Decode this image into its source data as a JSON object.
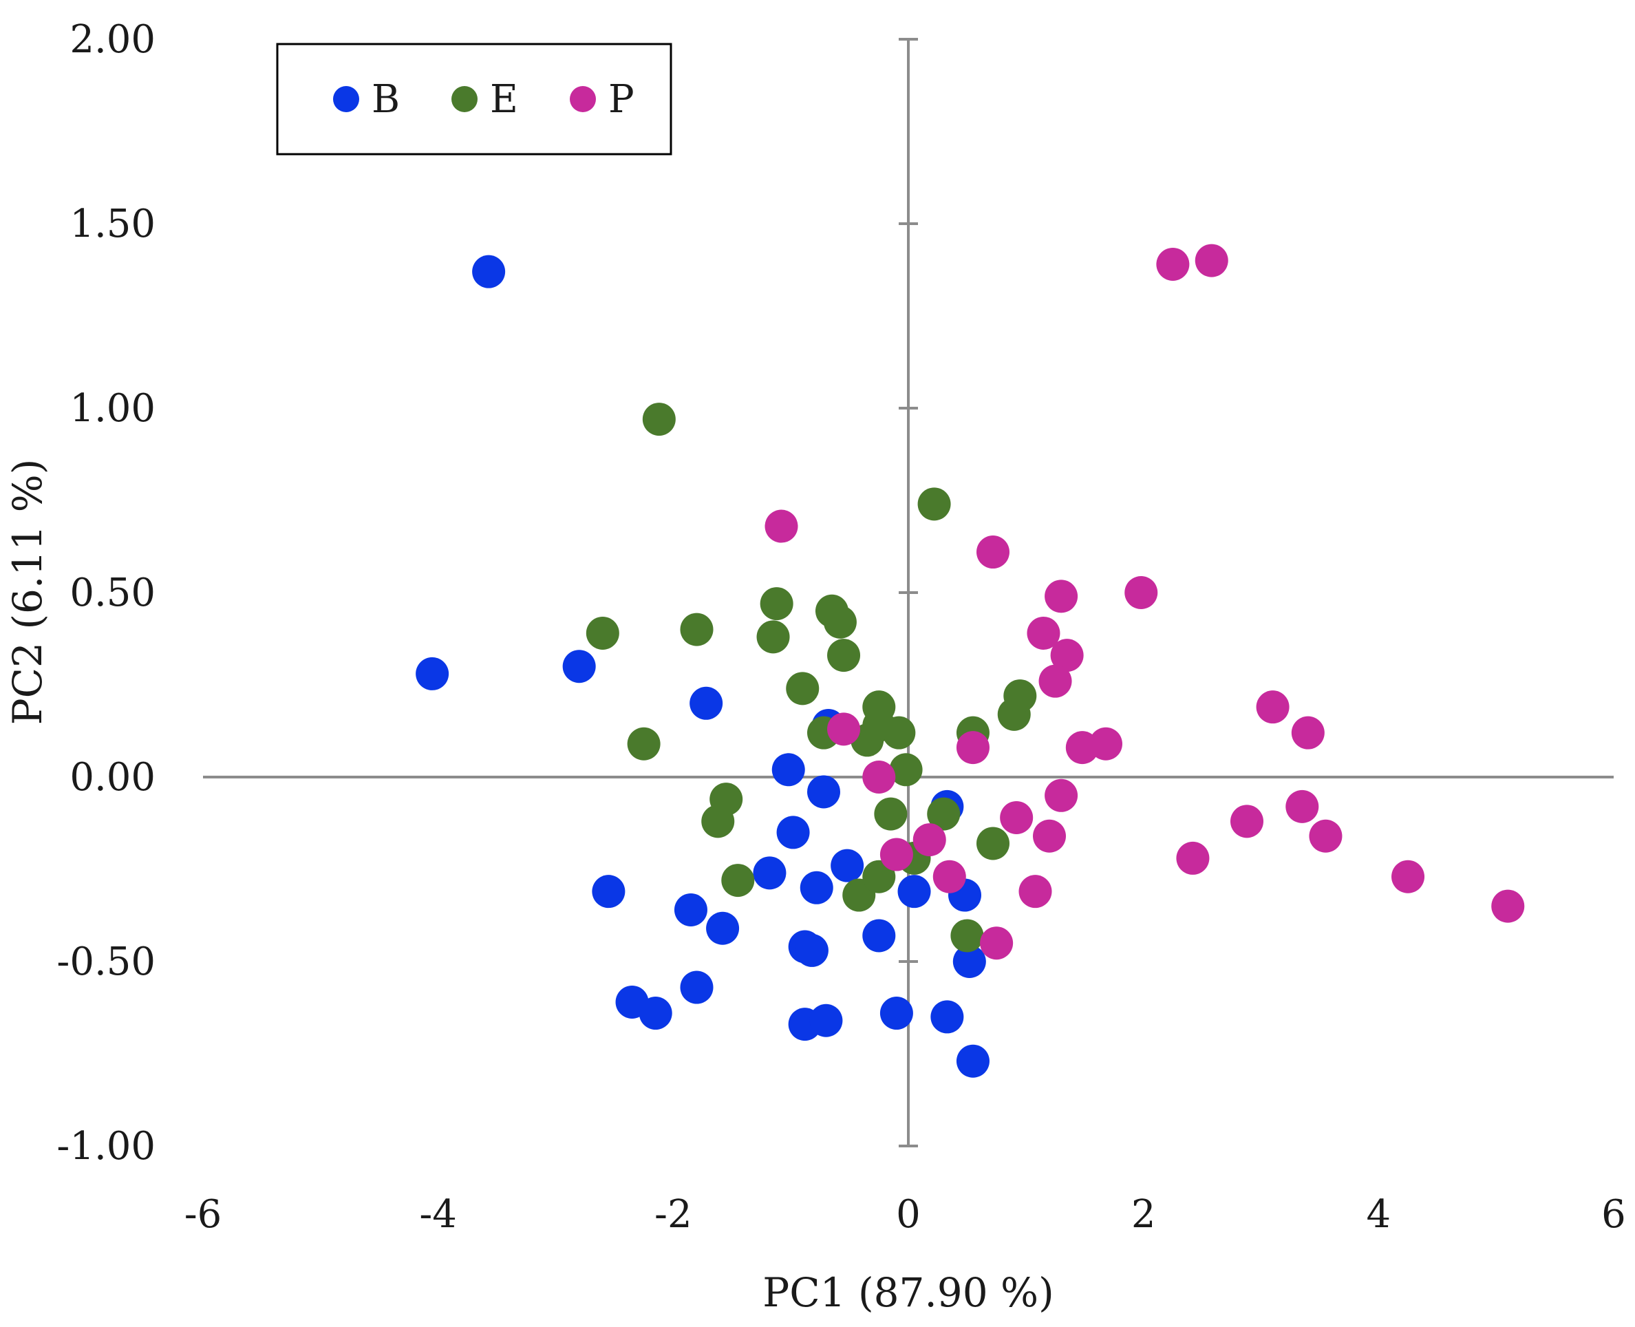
{
  "chart_data": {
    "type": "scatter",
    "title": "",
    "xlabel": "PC1 (87.90 %)",
    "ylabel": "PC2 (6.11 %)",
    "xlim": [
      -6,
      6
    ],
    "ylim": [
      -1,
      2
    ],
    "xticks": [
      -6,
      -4,
      -2,
      0,
      2,
      4,
      6
    ],
    "xtick_labels": [
      "-6",
      "-4",
      "-2",
      "0",
      "2",
      "4",
      "6"
    ],
    "yticks": [
      -1,
      -0.5,
      0,
      0.5,
      1,
      1.5,
      2
    ],
    "ytick_labels": [
      "-1.00",
      "-0.50",
      "0.00",
      "0.50",
      "1.00",
      "1.50",
      "2.00"
    ],
    "grid": false,
    "legend_position": "top-left",
    "series": [
      {
        "name": "B",
        "color": "#0a37e6",
        "points": [
          [
            -3.57,
            1.37
          ],
          [
            -4.05,
            0.28
          ],
          [
            -2.8,
            0.3
          ],
          [
            -1.72,
            0.2
          ],
          [
            -0.68,
            0.14
          ],
          [
            -1.02,
            0.02
          ],
          [
            -0.72,
            -0.04
          ],
          [
            -0.98,
            -0.15
          ],
          [
            -1.18,
            -0.26
          ],
          [
            -0.52,
            -0.24
          ],
          [
            -0.78,
            -0.3
          ],
          [
            -2.55,
            -0.31
          ],
          [
            -1.85,
            -0.36
          ],
          [
            -1.58,
            -0.41
          ],
          [
            -0.88,
            -0.46
          ],
          [
            -0.82,
            -0.47
          ],
          [
            -0.25,
            -0.43
          ],
          [
            -2.35,
            -0.61
          ],
          [
            -2.15,
            -0.64
          ],
          [
            -1.8,
            -0.57
          ],
          [
            -0.88,
            -0.67
          ],
          [
            -0.7,
            -0.66
          ],
          [
            -0.1,
            -0.64
          ],
          [
            0.33,
            -0.65
          ],
          [
            0.55,
            -0.77
          ],
          [
            0.52,
            -0.5
          ],
          [
            0.48,
            -0.32
          ],
          [
            0.05,
            -0.31
          ],
          [
            0.33,
            -0.08
          ]
        ]
      },
      {
        "name": "E",
        "color": "#4a7a2c",
        "points": [
          [
            -2.12,
            0.97
          ],
          [
            0.22,
            0.74
          ],
          [
            -2.6,
            0.39
          ],
          [
            -1.8,
            0.4
          ],
          [
            -1.12,
            0.47
          ],
          [
            -1.15,
            0.38
          ],
          [
            -0.65,
            0.45
          ],
          [
            -0.58,
            0.42
          ],
          [
            -0.55,
            0.33
          ],
          [
            -0.9,
            0.24
          ],
          [
            -2.25,
            0.09
          ],
          [
            -0.72,
            0.12
          ],
          [
            -0.35,
            0.1
          ],
          [
            -0.25,
            0.19
          ],
          [
            -0.25,
            0.14
          ],
          [
            -0.08,
            0.12
          ],
          [
            -0.02,
            0.02
          ],
          [
            0.55,
            0.12
          ],
          [
            0.9,
            0.17
          ],
          [
            0.95,
            0.22
          ],
          [
            -1.55,
            -0.06
          ],
          [
            -1.62,
            -0.12
          ],
          [
            -1.45,
            -0.28
          ],
          [
            -0.42,
            -0.32
          ],
          [
            -0.25,
            -0.27
          ],
          [
            -0.15,
            -0.1
          ],
          [
            0.3,
            -0.1
          ],
          [
            0.72,
            -0.18
          ],
          [
            0.5,
            -0.43
          ],
          [
            0.05,
            -0.22
          ]
        ]
      },
      {
        "name": "P",
        "color": "#c72a9c",
        "points": [
          [
            2.25,
            1.39
          ],
          [
            2.58,
            1.4
          ],
          [
            -1.08,
            0.68
          ],
          [
            0.72,
            0.61
          ],
          [
            1.3,
            0.49
          ],
          [
            1.98,
            0.5
          ],
          [
            1.15,
            0.39
          ],
          [
            1.35,
            0.33
          ],
          [
            1.25,
            0.26
          ],
          [
            3.1,
            0.19
          ],
          [
            3.4,
            0.12
          ],
          [
            -0.55,
            0.13
          ],
          [
            0.55,
            0.08
          ],
          [
            1.48,
            0.08
          ],
          [
            1.68,
            0.09
          ],
          [
            -0.25,
            0.0
          ],
          [
            1.3,
            -0.05
          ],
          [
            0.92,
            -0.11
          ],
          [
            1.2,
            -0.16
          ],
          [
            2.88,
            -0.12
          ],
          [
            3.35,
            -0.08
          ],
          [
            3.55,
            -0.16
          ],
          [
            0.18,
            -0.17
          ],
          [
            -0.1,
            -0.21
          ],
          [
            0.35,
            -0.27
          ],
          [
            2.42,
            -0.22
          ],
          [
            4.25,
            -0.27
          ],
          [
            5.1,
            -0.35
          ],
          [
            1.08,
            -0.31
          ],
          [
            0.75,
            -0.45
          ]
        ]
      }
    ]
  }
}
